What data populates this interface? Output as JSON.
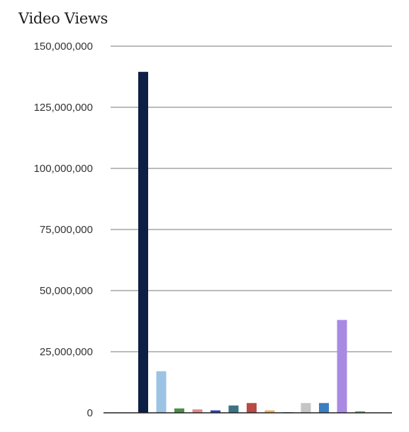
{
  "chart_data": {
    "type": "bar",
    "title": "Video Views",
    "xlabel": "",
    "ylabel": "",
    "ylim": [
      0,
      150000000
    ],
    "yticks": [
      0,
      25000000,
      50000000,
      75000000,
      100000000,
      125000000,
      150000000
    ],
    "ytick_labels": [
      "0",
      "25,000,000",
      "50,000,000",
      "75,000,000",
      "100,000,000",
      "125,000,000",
      "150,000,000"
    ],
    "grid": true,
    "legend": "none",
    "categories": [
      "",
      "",
      "",
      "",
      "",
      "",
      "",
      "",
      "",
      "",
      "",
      "",
      ""
    ],
    "values": [
      139500000,
      17000000,
      1800000,
      1400000,
      1000000,
      3000000,
      4000000,
      1000000,
      300000,
      4000000,
      4000000,
      38000000,
      600000
    ],
    "colors": [
      "#0d1f45",
      "#9cc3e4",
      "#4a8f4a",
      "#e08a8a",
      "#2f3fbf",
      "#3b7480",
      "#b84a45",
      "#f0b060",
      "#5a9ac8",
      "#c5c5c5",
      "#3a7fc1",
      "#a98ae3",
      "#5fa45f"
    ]
  }
}
